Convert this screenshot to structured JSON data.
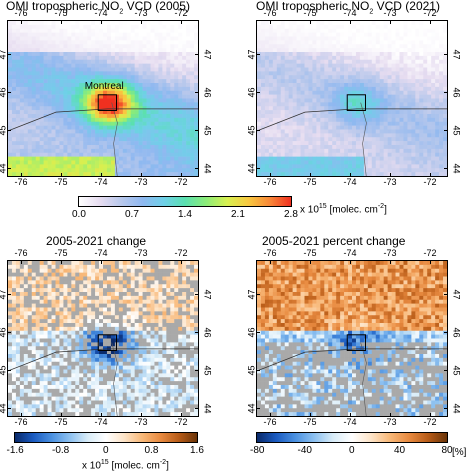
{
  "panels": [
    {
      "id": "no2-2005",
      "title_pre": "OMI tropospheric NO",
      "title_sub": "2",
      "title_post": " VCD (2005)",
      "scheme": "abs",
      "hi": [
        0.72,
        0.55,
        1.0
      ],
      "city_label": "Montreal"
    },
    {
      "id": "no2-2021",
      "title_pre": "OMI tropospheric NO",
      "title_sub": "2",
      "title_post": " VCD (2021)",
      "scheme": "abs",
      "hi": [
        0.42,
        0.3,
        0.55
      ]
    },
    {
      "id": "change",
      "title_pre": "2005-2021 change",
      "title_sub": "",
      "title_post": "",
      "scheme": "diff"
    },
    {
      "id": "pct",
      "title_pre": "2005-2021 percent change",
      "title_sub": "",
      "title_post": "",
      "scheme": "pct"
    }
  ],
  "lon_ticks": [
    "-76",
    "-75",
    "-74",
    "-73",
    "-72"
  ],
  "lat_ticks": [
    "47",
    "46",
    "45",
    "44"
  ],
  "colorbar_abs": {
    "ticks": [
      "0.0",
      "0.7",
      "1.4",
      "2.1",
      "2.8"
    ],
    "unit_pre": "x 10",
    "unit_sup": "15",
    "unit_post": " [molec. cm",
    "unit_sup2": "-2",
    "unit_end": "]",
    "colors": [
      "#ffffff",
      "#e6dcf0",
      "#b8c8ec",
      "#8fb8f0",
      "#6fd0e8",
      "#5ae0b0",
      "#8cec78",
      "#d8f050",
      "#f8c840",
      "#f88838",
      "#f03020"
    ]
  },
  "colorbar_diff": {
    "ticks": [
      "-1.6",
      "-0.8",
      "0",
      "0.8",
      "1.6"
    ],
    "unit_pre": "x 10",
    "unit_sup": "15",
    "unit_post": " [molec. cm",
    "unit_sup2": "-2",
    "unit_end": "]",
    "colors": [
      "#0a2a6a",
      "#1a5ac0",
      "#4a90e0",
      "#8cc0f0",
      "#d8ecf8",
      "#ffffff",
      "#fde4c8",
      "#f8b878",
      "#e88a40",
      "#b85c18",
      "#6a3408"
    ]
  },
  "colorbar_pct": {
    "ticks": [
      "-80",
      "-40",
      "0",
      "40",
      "80"
    ],
    "unit": "[%]",
    "colors": [
      "#0a2a6a",
      "#1a5ac0",
      "#4a90e0",
      "#8cc0f0",
      "#d8ecf8",
      "#ffffff",
      "#fde4c8",
      "#f8b878",
      "#e88a40",
      "#b85c18",
      "#6a3408"
    ]
  }
}
